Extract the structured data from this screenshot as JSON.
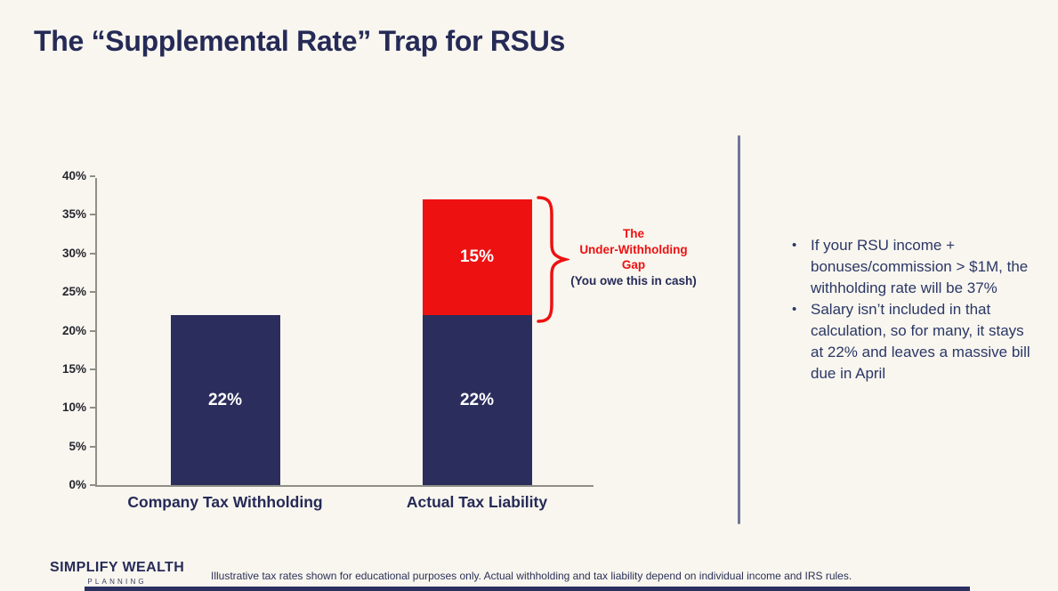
{
  "title": "The “Supplemental Rate” Trap for RSUs",
  "chart_data": {
    "type": "bar",
    "stacked": true,
    "title": "",
    "xlabel": "",
    "ylabel": "",
    "ylim": [
      0,
      40
    ],
    "yticks": [
      "0%",
      "5%",
      "10%",
      "15%",
      "20%",
      "25%",
      "30%",
      "35%",
      "40%"
    ],
    "grid": false,
    "legend": "none",
    "categories": [
      "Company Tax Withholding",
      "Actual Tax Liability"
    ],
    "bars": [
      {
        "category": "Company Tax Withholding",
        "total": 22,
        "segments": [
          {
            "value": 22,
            "label": "22%",
            "color": "#2B2D5C"
          }
        ]
      },
      {
        "category": "Actual Tax Liability",
        "total": 37,
        "segments": [
          {
            "value": 22,
            "label": "22%",
            "color": "#2B2D5C"
          },
          {
            "value": 15,
            "label": "15%",
            "color": "#EE1111"
          }
        ]
      }
    ],
    "annotation": {
      "line1": "The",
      "line2": "Under-Withholding",
      "line3": "Gap",
      "line4": "(You owe this in cash)",
      "accent_color": "#EE1111"
    }
  },
  "bullets": [
    "If your RSU income + bonuses/commission > $1M, the withholding rate will be 37%",
    "Salary isn’t included in that calculation, so for many, it stays at 22% and leaves a massive bill due in April"
  ],
  "footer": {
    "logo_line1": "SIMPLIFY WEALTH",
    "logo_line2": "PLANNING",
    "disclaimer": "Illustrative tax rates shown for educational purposes only. Actual withholding and tax liability depend on individual income and IRS rules."
  },
  "colors": {
    "background": "#F8F6EF",
    "navy": "#2B2D5C",
    "red": "#EE1111",
    "text_navy": "#2B3766",
    "axis_gray": "#8F8F88",
    "divider": "#70769A"
  }
}
